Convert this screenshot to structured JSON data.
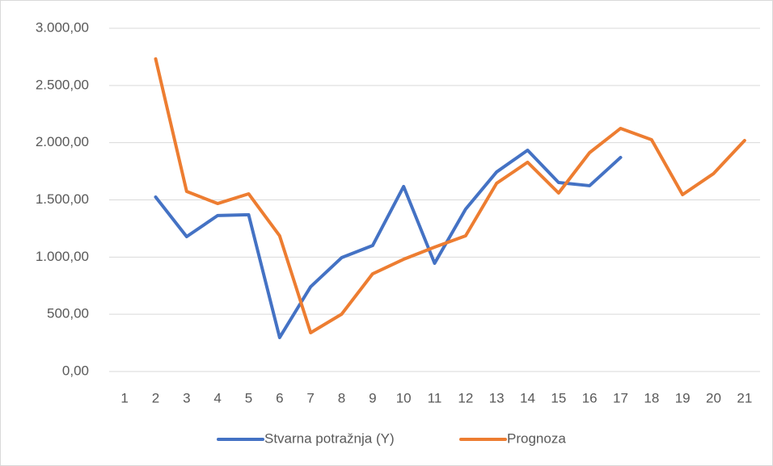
{
  "chart_data": {
    "type": "line",
    "categories": [
      "1",
      "2",
      "3",
      "4",
      "5",
      "6",
      "7",
      "8",
      "9",
      "10",
      "11",
      "12",
      "13",
      "14",
      "15",
      "16",
      "17",
      "18",
      "19",
      "20",
      "21"
    ],
    "series": [
      {
        "name": "Stvarna potražnja (Y)",
        "color": "#4472c4",
        "values": [
          null,
          1525,
          1179,
          1363,
          1370,
          297,
          741,
          995,
          1101,
          1617,
          946,
          1419,
          1744,
          1934,
          1652,
          1624,
          1871,
          null,
          null,
          null,
          null
        ]
      },
      {
        "name": "Prognoza",
        "color": "#ed7d31",
        "values": [
          null,
          2732,
          1574,
          1468,
          1553,
          1186,
          339,
          501,
          854,
          981,
          1087,
          1186,
          1645,
          1829,
          1560,
          1913,
          2125,
          2026,
          1546,
          1730,
          2019
        ]
      }
    ],
    "ylim": [
      0,
      3000
    ],
    "yticks": [
      {
        "value": 0,
        "label": "0,00"
      },
      {
        "value": 500,
        "label": "500,00"
      },
      {
        "value": 1000,
        "label": "1.000,00"
      },
      {
        "value": 1500,
        "label": "1.500,00"
      },
      {
        "value": 2000,
        "label": "2.000,00"
      },
      {
        "value": 2500,
        "label": "2.500,00"
      },
      {
        "value": 3000,
        "label": "3.000,00"
      }
    ],
    "grid": true,
    "legend": "bottom"
  }
}
